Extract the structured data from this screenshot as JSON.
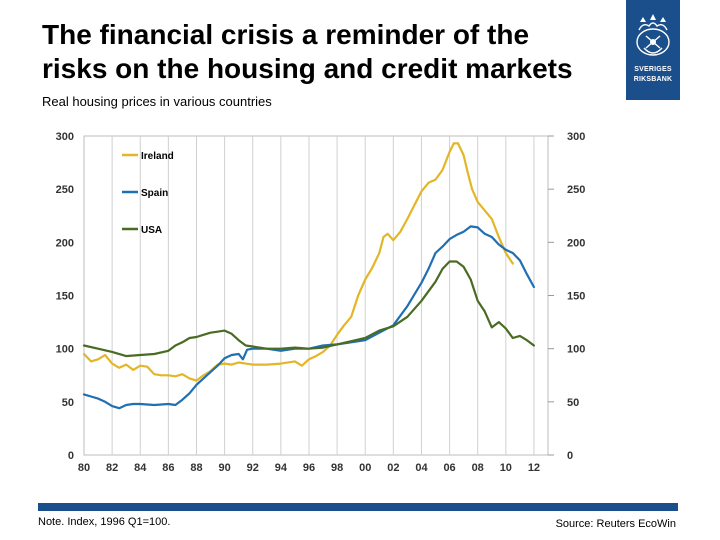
{
  "slide": {
    "title_line1": "The financial crisis a reminder of the",
    "title_line2": "risks on the housing and credit markets",
    "subtitle": "Real housing prices in various countries",
    "note": "Note. Index, 1996 Q1=100.",
    "source": "Source: Reuters EcoWin",
    "logo_line1": "SVERIGES",
    "logo_line2": "RIKSBANK"
  },
  "colors": {
    "brand_blue": "#1b4f8c",
    "ireland": "#e3b628",
    "spain": "#1f6fb2",
    "usa": "#4a6b24",
    "grid": "#d0d0d0"
  },
  "chart_data": {
    "type": "line",
    "title": "Real housing prices in various countries",
    "xlabel": "",
    "ylabel": "",
    "xlim": [
      1980,
      2013
    ],
    "ylim": [
      0,
      300
    ],
    "x_ticks": [
      1980,
      1982,
      1984,
      1986,
      1988,
      1990,
      1992,
      1994,
      1996,
      1998,
      2000,
      2002,
      2004,
      2006,
      2008,
      2010,
      2012
    ],
    "x_tick_labels": [
      "80",
      "82",
      "84",
      "86",
      "88",
      "90",
      "92",
      "94",
      "96",
      "98",
      "00",
      "02",
      "04",
      "06",
      "08",
      "10",
      "12"
    ],
    "y_ticks": [
      0,
      50,
      100,
      150,
      200,
      250,
      300
    ],
    "y_tick_labels": [
      "0",
      "50",
      "100",
      "150",
      "200",
      "250",
      "300"
    ],
    "grid": "vertical",
    "legend_position": "top-left",
    "series": [
      {
        "name": "Ireland",
        "color": "#e3b628",
        "x": [
          1980.0,
          1980.5,
          1981.0,
          1981.5,
          1982.0,
          1982.5,
          1983.0,
          1983.5,
          1984.0,
          1984.5,
          1985.0,
          1985.5,
          1986.0,
          1986.5,
          1987.0,
          1987.5,
          1988.0,
          1988.5,
          1989.0,
          1989.5,
          1990.0,
          1990.5,
          1991.0,
          1991.5,
          1992.0,
          1993.0,
          1994.0,
          1995.0,
          1995.5,
          1996.0,
          1996.5,
          1997.0,
          1997.5,
          1998.0,
          1998.5,
          1999.0,
          1999.5,
          2000.0,
          2000.5,
          2001.0,
          2001.3,
          2001.6,
          2002.0,
          2002.5,
          2003.0,
          2003.5,
          2004.0,
          2004.5,
          2005.0,
          2005.5,
          2006.0,
          2006.3,
          2006.6,
          2007.0,
          2007.3,
          2007.6,
          2008.0,
          2008.5,
          2009.0,
          2009.5,
          2010.0,
          2010.5
        ],
        "values": [
          95,
          88,
          90,
          94,
          86,
          82,
          85,
          80,
          84,
          83,
          76,
          75,
          75,
          74,
          76,
          72,
          70,
          75,
          79,
          85,
          86,
          85,
          87,
          86,
          85,
          85,
          86,
          88,
          84,
          90,
          93,
          97,
          103,
          113,
          122,
          130,
          150,
          165,
          176,
          190,
          205,
          208,
          202,
          210,
          222,
          235,
          248,
          256,
          259,
          268,
          285,
          293,
          293,
          282,
          265,
          250,
          238,
          230,
          222,
          205,
          190,
          180
        ]
      },
      {
        "name": "Spain",
        "color": "#1f6fb2",
        "x": [
          1980.0,
          1980.5,
          1981.0,
          1981.5,
          1982.0,
          1982.5,
          1983.0,
          1983.5,
          1984.0,
          1985.0,
          1986.0,
          1986.5,
          1987.0,
          1987.5,
          1988.0,
          1988.5,
          1989.0,
          1989.5,
          1990.0,
          1990.5,
          1991.0,
          1991.3,
          1991.6,
          1992.0,
          1993.0,
          1994.0,
          1995.0,
          1996.0,
          1997.0,
          1998.0,
          1999.0,
          2000.0,
          2001.0,
          2002.0,
          2003.0,
          2004.0,
          2004.5,
          2005.0,
          2005.5,
          2006.0,
          2006.5,
          2007.0,
          2007.5,
          2008.0,
          2008.5,
          2009.0,
          2009.5,
          2010.0,
          2010.5,
          2011.0,
          2011.5,
          2012.0
        ],
        "values": [
          57,
          55,
          53,
          50,
          46,
          44,
          47,
          48,
          48,
          47,
          48,
          47,
          52,
          58,
          66,
          72,
          78,
          84,
          91,
          94,
          95,
          90,
          99,
          100,
          100,
          98,
          100,
          100,
          103,
          104,
          106,
          108,
          115,
          122,
          140,
          162,
          175,
          190,
          196,
          203,
          207,
          210,
          215,
          214,
          208,
          205,
          198,
          193,
          190,
          183,
          170,
          158
        ]
      },
      {
        "name": "USA",
        "color": "#4a6b24",
        "x": [
          1980.0,
          1981.0,
          1982.0,
          1983.0,
          1984.0,
          1985.0,
          1986.0,
          1986.5,
          1987.0,
          1987.5,
          1988.0,
          1988.5,
          1989.0,
          1989.5,
          1990.0,
          1990.5,
          1991.0,
          1991.5,
          1992.0,
          1993.0,
          1994.0,
          1995.0,
          1996.0,
          1997.0,
          1998.0,
          1999.0,
          2000.0,
          2001.0,
          2002.0,
          2003.0,
          2004.0,
          2005.0,
          2005.5,
          2006.0,
          2006.5,
          2007.0,
          2007.5,
          2008.0,
          2008.5,
          2009.0,
          2009.5,
          2010.0,
          2010.5,
          2011.0,
          2011.5,
          2012.0
        ],
        "values": [
          103,
          100,
          97,
          93,
          94,
          95,
          98,
          103,
          106,
          110,
          111,
          113,
          115,
          116,
          117,
          114,
          108,
          103,
          102,
          100,
          100,
          101,
          100,
          101,
          104,
          107,
          110,
          117,
          121,
          130,
          145,
          163,
          175,
          182,
          182,
          177,
          165,
          145,
          135,
          120,
          125,
          119,
          110,
          112,
          108,
          103
        ]
      }
    ]
  }
}
